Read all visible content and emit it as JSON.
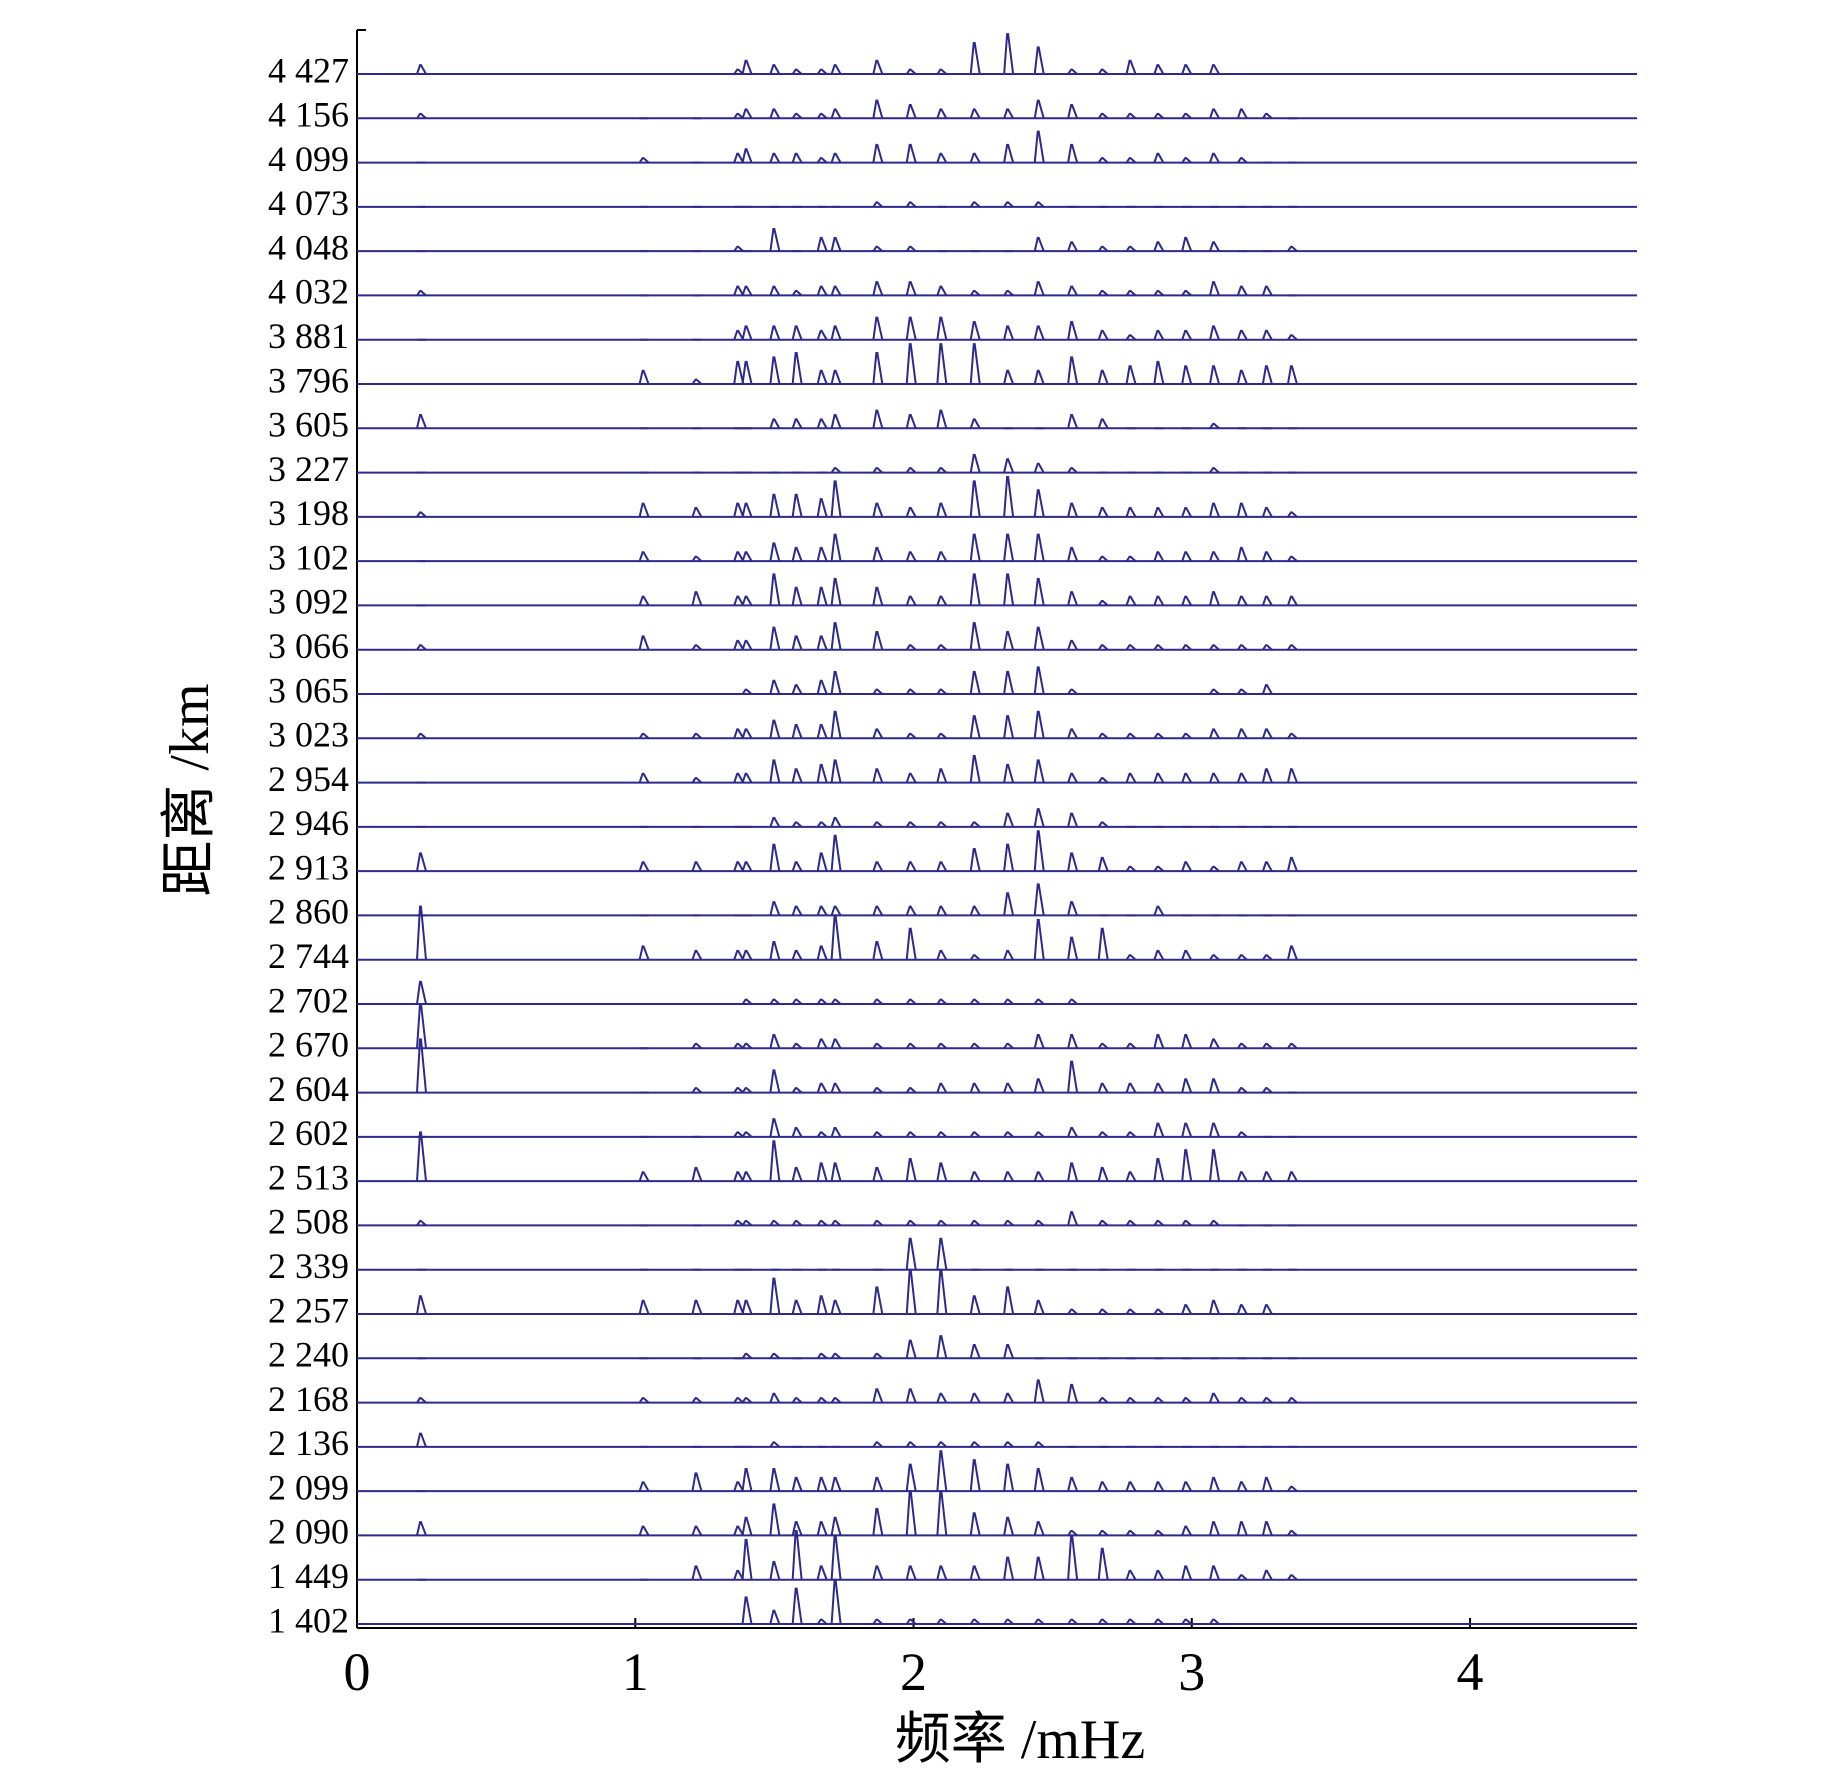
{
  "chart_data": {
    "type": "line",
    "x_label": "频率 /mHz",
    "y_label": "距离 /km",
    "xlim": [
      0,
      4.6
    ],
    "xticks": [
      0,
      1,
      2,
      3,
      4
    ],
    "color": "#2e2a8c",
    "x": [
      0.23,
      1.03,
      1.22,
      1.37,
      1.4,
      1.5,
      1.58,
      1.67,
      1.72,
      1.87,
      1.99,
      2.1,
      2.22,
      2.34,
      2.45,
      2.57,
      2.68,
      2.78,
      2.88,
      2.98,
      3.08,
      3.18,
      3.27,
      3.36
    ],
    "series": [
      {
        "name": "4 427",
        "values": [
          2,
          0,
          0,
          1,
          3,
          2,
          1,
          1,
          2,
          3,
          1,
          1,
          7,
          9,
          6,
          1,
          1,
          3,
          2,
          2,
          2,
          0,
          0,
          0
        ]
      },
      {
        "name": "4 156",
        "values": [
          1,
          0,
          0,
          1,
          2,
          2,
          1,
          1,
          2,
          4,
          3,
          2,
          2,
          2,
          4,
          3,
          1,
          1,
          1,
          1,
          2,
          2,
          1,
          0
        ]
      },
      {
        "name": "4 099",
        "values": [
          0,
          1,
          0,
          2,
          3,
          2,
          2,
          1,
          2,
          4,
          4,
          2,
          2,
          4,
          7,
          4,
          1,
          1,
          2,
          1,
          2,
          1,
          0,
          0
        ]
      },
      {
        "name": "4 073",
        "values": [
          0,
          0,
          0,
          0,
          0,
          0,
          0,
          0,
          0,
          1,
          1,
          0,
          1,
          1,
          1,
          0,
          0,
          0,
          0,
          0,
          0,
          0,
          0,
          0
        ]
      },
      {
        "name": "4 048",
        "values": [
          0,
          0,
          0,
          1,
          0,
          5,
          0,
          3,
          3,
          1,
          1,
          0,
          0,
          0,
          3,
          2,
          1,
          1,
          2,
          3,
          2,
          0,
          0,
          1
        ]
      },
      {
        "name": "4 032",
        "values": [
          1,
          0,
          0,
          2,
          2,
          2,
          1,
          2,
          2,
          3,
          3,
          2,
          1,
          1,
          3,
          2,
          1,
          1,
          1,
          1,
          3,
          2,
          2,
          0
        ]
      },
      {
        "name": "3 881",
        "values": [
          0,
          0,
          0,
          2,
          3,
          3,
          3,
          2,
          3,
          5,
          5,
          5,
          4,
          3,
          3,
          4,
          2,
          1,
          2,
          2,
          3,
          2,
          2,
          1
        ]
      },
      {
        "name": "3 796",
        "values": [
          0,
          3,
          1,
          5,
          5,
          6,
          7,
          3,
          3,
          7,
          9,
          9,
          9,
          3,
          3,
          6,
          3,
          4,
          5,
          4,
          4,
          3,
          4,
          4
        ]
      },
      {
        "name": "3 605",
        "values": [
          3,
          0,
          0,
          0,
          0,
          2,
          2,
          2,
          3,
          4,
          3,
          4,
          2,
          0,
          0,
          3,
          2,
          0,
          0,
          0,
          1,
          0,
          0,
          0
        ]
      },
      {
        "name": "3 227",
        "values": [
          0,
          0,
          0,
          0,
          0,
          0,
          0,
          0,
          1,
          1,
          1,
          1,
          4,
          3,
          2,
          1,
          0,
          0,
          0,
          0,
          1,
          0,
          0,
          0
        ]
      },
      {
        "name": "3 198",
        "values": [
          1,
          3,
          2,
          3,
          3,
          5,
          5,
          4,
          8,
          3,
          2,
          3,
          8,
          9,
          6,
          3,
          2,
          2,
          2,
          2,
          3,
          3,
          2,
          1
        ]
      },
      {
        "name": "3 102",
        "values": [
          0,
          2,
          1,
          2,
          2,
          4,
          3,
          3,
          6,
          3,
          2,
          2,
          6,
          6,
          6,
          3,
          1,
          1,
          2,
          2,
          2,
          3,
          2,
          1
        ]
      },
      {
        "name": "3 092",
        "values": [
          0,
          2,
          3,
          2,
          2,
          7,
          4,
          4,
          6,
          4,
          2,
          2,
          7,
          7,
          6,
          3,
          1,
          2,
          2,
          2,
          3,
          2,
          2,
          2
        ]
      },
      {
        "name": "3 066",
        "values": [
          1,
          3,
          1,
          2,
          2,
          5,
          3,
          3,
          6,
          4,
          1,
          1,
          6,
          4,
          5,
          2,
          1,
          1,
          1,
          1,
          1,
          1,
          1,
          1
        ]
      },
      {
        "name": "3 065",
        "values": [
          0,
          0,
          0,
          0,
          1,
          3,
          2,
          3,
          5,
          1,
          1,
          1,
          5,
          5,
          6,
          1,
          0,
          0,
          0,
          0,
          1,
          1,
          2,
          0
        ]
      },
      {
        "name": "3 023",
        "values": [
          1,
          1,
          1,
          2,
          2,
          4,
          3,
          3,
          6,
          2,
          1,
          1,
          5,
          5,
          6,
          2,
          1,
          1,
          1,
          1,
          2,
          2,
          2,
          1
        ]
      },
      {
        "name": "2 954",
        "values": [
          0,
          2,
          1,
          2,
          2,
          5,
          3,
          4,
          5,
          3,
          2,
          3,
          6,
          4,
          5,
          2,
          1,
          2,
          2,
          2,
          2,
          2,
          3,
          3
        ]
      },
      {
        "name": "2 946",
        "values": [
          0,
          0,
          0,
          0,
          0,
          2,
          1,
          1,
          2,
          1,
          1,
          1,
          1,
          3,
          4,
          3,
          1,
          0,
          0,
          0,
          0,
          0,
          0,
          0
        ]
      },
      {
        "name": "2 913",
        "values": [
          4,
          2,
          2,
          2,
          2,
          6,
          2,
          4,
          8,
          2,
          2,
          2,
          5,
          6,
          9,
          4,
          3,
          1,
          1,
          2,
          1,
          2,
          2,
          3
        ]
      },
      {
        "name": "2 860",
        "values": [
          0,
          0,
          0,
          0,
          0,
          3,
          2,
          2,
          2,
          2,
          2,
          2,
          2,
          5,
          7,
          3,
          0,
          0,
          2,
          0,
          0,
          0,
          0,
          0
        ]
      },
      {
        "name": "2 744",
        "values": [
          12,
          3,
          2,
          2,
          2,
          4,
          2,
          3,
          10,
          4,
          7,
          2,
          1,
          2,
          9,
          5,
          7,
          1,
          2,
          2,
          1,
          1,
          1,
          3
        ]
      },
      {
        "name": "2 702",
        "values": [
          5,
          0,
          0,
          0,
          1,
          1,
          1,
          1,
          1,
          1,
          1,
          1,
          1,
          1,
          1,
          1,
          0,
          0,
          0,
          0,
          0,
          0,
          0,
          0
        ]
      },
      {
        "name": "2 670",
        "values": [
          10,
          0,
          1,
          1,
          1,
          3,
          1,
          2,
          2,
          1,
          1,
          1,
          1,
          1,
          3,
          3,
          1,
          1,
          3,
          3,
          2,
          1,
          1,
          1
        ]
      },
      {
        "name": "2 604",
        "values": [
          12,
          0,
          1,
          1,
          1,
          5,
          1,
          2,
          2,
          1,
          1,
          2,
          2,
          2,
          3,
          7,
          2,
          2,
          2,
          3,
          3,
          1,
          1,
          0
        ]
      },
      {
        "name": "2 602",
        "values": [
          0,
          0,
          0,
          1,
          1,
          4,
          2,
          1,
          2,
          1,
          1,
          1,
          1,
          1,
          1,
          2,
          1,
          1,
          3,
          3,
          3,
          1,
          0,
          0
        ]
      },
      {
        "name": "2 513",
        "values": [
          11,
          2,
          3,
          2,
          2,
          9,
          3,
          4,
          4,
          3,
          5,
          4,
          2,
          2,
          2,
          4,
          3,
          2,
          5,
          7,
          7,
          2,
          2,
          2
        ]
      },
      {
        "name": "2 508",
        "values": [
          1,
          0,
          0,
          1,
          1,
          1,
          1,
          1,
          1,
          1,
          1,
          1,
          1,
          1,
          1,
          3,
          1,
          1,
          1,
          1,
          1,
          0,
          0,
          0
        ]
      },
      {
        "name": "2 339",
        "values": [
          0,
          0,
          0,
          0,
          0,
          0,
          0,
          0,
          0,
          0,
          7,
          7,
          0,
          0,
          0,
          0,
          0,
          0,
          0,
          0,
          0,
          0,
          0,
          0
        ]
      },
      {
        "name": "2 257",
        "values": [
          4,
          3,
          3,
          3,
          3,
          8,
          3,
          4,
          3,
          6,
          10,
          10,
          4,
          6,
          3,
          1,
          1,
          1,
          1,
          2,
          3,
          2,
          2,
          0
        ]
      },
      {
        "name": "2 240",
        "values": [
          0,
          0,
          0,
          0,
          1,
          1,
          0,
          1,
          1,
          1,
          4,
          5,
          3,
          3,
          0,
          0,
          0,
          0,
          0,
          0,
          0,
          0,
          0,
          0
        ]
      },
      {
        "name": "2 168",
        "values": [
          1,
          1,
          1,
          1,
          1,
          2,
          1,
          1,
          1,
          3,
          3,
          2,
          2,
          2,
          5,
          4,
          1,
          1,
          1,
          1,
          2,
          1,
          1,
          1
        ]
      },
      {
        "name": "2 136",
        "values": [
          3,
          0,
          0,
          0,
          0,
          1,
          0,
          0,
          0,
          1,
          1,
          1,
          1,
          1,
          1,
          0,
          0,
          0,
          0,
          0,
          0,
          0,
          0,
          0
        ]
      },
      {
        "name": "2 099",
        "values": [
          0,
          2,
          4,
          2,
          5,
          5,
          3,
          3,
          3,
          3,
          6,
          9,
          7,
          6,
          5,
          3,
          2,
          2,
          2,
          2,
          3,
          2,
          3,
          1
        ]
      },
      {
        "name": "2 090",
        "values": [
          3,
          2,
          2,
          2,
          4,
          7,
          3,
          3,
          4,
          6,
          10,
          10,
          5,
          4,
          3,
          1,
          1,
          1,
          1,
          2,
          3,
          3,
          3,
          1
        ]
      },
      {
        "name": "1 449",
        "values": [
          0,
          0,
          3,
          2,
          9,
          4,
          11,
          3,
          10,
          3,
          3,
          3,
          3,
          5,
          5,
          10,
          7,
          2,
          2,
          3,
          3,
          1,
          2,
          1
        ]
      },
      {
        "name": "1 402",
        "values": [
          0,
          0,
          0,
          0,
          6,
          3,
          8,
          1,
          10,
          1,
          1,
          1,
          1,
          1,
          1,
          1,
          1,
          1,
          1,
          1,
          1,
          0,
          0,
          0
        ]
      }
    ]
  }
}
